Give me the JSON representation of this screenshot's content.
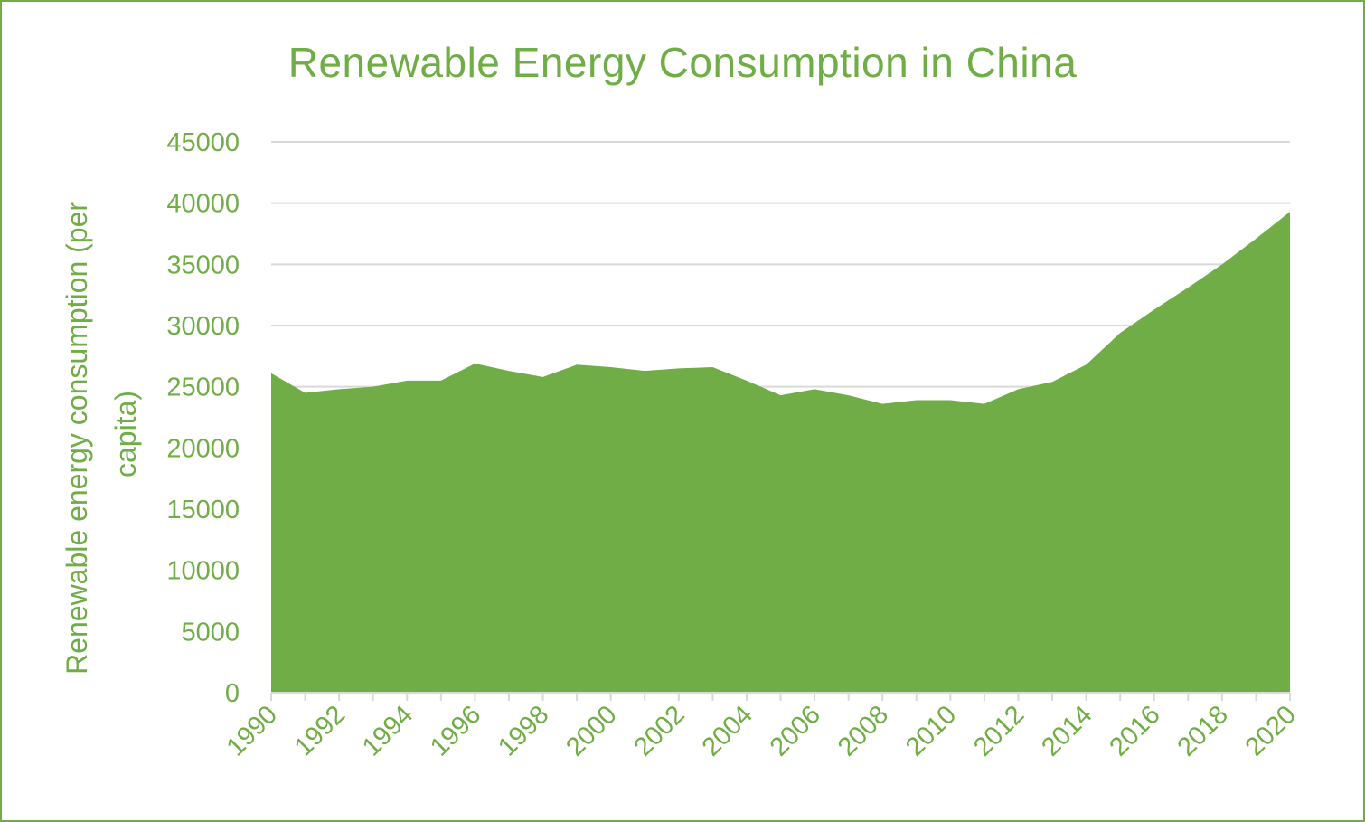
{
  "colors": {
    "accent": "#70AD47",
    "grid": "#D9D9D9",
    "axis": "#D9D9D9"
  },
  "chart_data": {
    "type": "area",
    "title": "Renewable Energy Consumption in China",
    "xlabel": "",
    "ylabel_lines": [
      "Renewable energy consumption (per",
      "capita)"
    ],
    "ylim": [
      0,
      45000
    ],
    "yticks": [
      "0",
      "5000",
      "10000",
      "15000",
      "20000",
      "25000",
      "30000",
      "35000",
      "40000",
      "45000"
    ],
    "grid": true,
    "legend": "none",
    "x": [
      1990,
      1991,
      1992,
      1993,
      1994,
      1995,
      1996,
      1997,
      1998,
      1999,
      2000,
      2001,
      2002,
      2003,
      2004,
      2005,
      2006,
      2007,
      2008,
      2009,
      2010,
      2011,
      2012,
      2013,
      2014,
      2015,
      2016,
      2017,
      2018,
      2019,
      2020
    ],
    "xtick_labels": [
      "1990",
      "1992",
      "1994",
      "1996",
      "1998",
      "2000",
      "2002",
      "2004",
      "2006",
      "2008",
      "2010",
      "2012",
      "2014",
      "2016",
      "2018",
      "2020"
    ],
    "series": [
      {
        "name": "Renewable energy consumption",
        "values": [
          26100,
          24500,
          24800,
          25000,
          25500,
          25500,
          26900,
          26300,
          25800,
          26800,
          26600,
          26300,
          26500,
          26600,
          25500,
          24300,
          24800,
          24300,
          23600,
          23900,
          23900,
          23600,
          24800,
          25400,
          26800,
          29400,
          31300,
          33100,
          35000,
          37100,
          39300
        ]
      }
    ]
  }
}
